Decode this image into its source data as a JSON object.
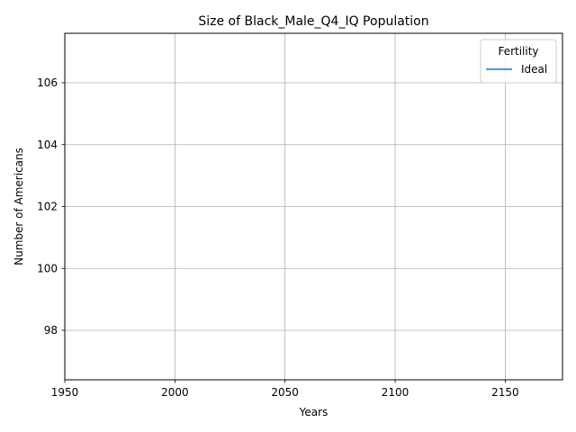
{
  "chart_data": {
    "type": "line",
    "title": "Size of Black_Male_Q4_IQ Population",
    "xlabel": "Years",
    "ylabel": "Number of Americans",
    "xlim": [
      1950,
      2176
    ],
    "ylim": [
      96.4,
      107.6
    ],
    "xticks": [
      1950,
      2000,
      2050,
      2100,
      2150
    ],
    "yticks": [
      98,
      100,
      102,
      104,
      106
    ],
    "grid": true,
    "legend": {
      "title": "Fertility",
      "placement": "top-right",
      "entries": [
        {
          "label": "Ideal",
          "color": "#1f77b4"
        }
      ]
    },
    "series": [
      {
        "name": "Ideal",
        "color": "#1f77b4",
        "x": [],
        "y": []
      }
    ]
  }
}
